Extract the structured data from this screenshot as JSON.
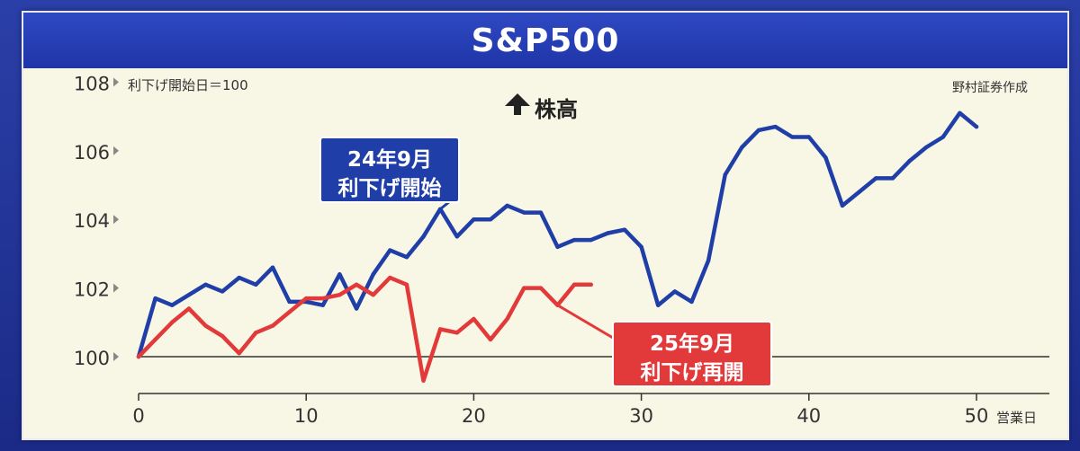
{
  "chart_data": {
    "type": "line",
    "title": "S&P500",
    "ylabel": "利下げ開始日＝100",
    "xlabel": "営業日",
    "source_note": "野村証券作成",
    "center_note": "株高",
    "ylim": [
      99,
      108
    ],
    "xlim": [
      0,
      54
    ],
    "x_ticks": [
      0,
      10,
      20,
      30,
      40,
      50
    ],
    "x_tick_labels": [
      "0",
      "10",
      "20",
      "30",
      "40",
      "50"
    ],
    "y_ticks": [
      100,
      102,
      104,
      106,
      108
    ],
    "y_tick_labels": [
      "100",
      "102",
      "104",
      "106",
      "108"
    ],
    "grid": false,
    "series": [
      {
        "color": "#1f3ea8",
        "label_lines": [
          "24年9月",
          "利下げ開始"
        ],
        "x": [
          0,
          1,
          2,
          3,
          4,
          5,
          6,
          7,
          8,
          9,
          10,
          11,
          12,
          13,
          14,
          15,
          16,
          17,
          18,
          19,
          20,
          21,
          22,
          23,
          24,
          25,
          26,
          27,
          28,
          29,
          30,
          31,
          32,
          33,
          34,
          35,
          36,
          37,
          38,
          39,
          40,
          41,
          42,
          43,
          44,
          45,
          46,
          47,
          48,
          49,
          50
        ],
        "values": [
          100.0,
          101.7,
          101.5,
          101.8,
          102.1,
          101.9,
          102.3,
          102.1,
          102.6,
          101.6,
          101.6,
          101.5,
          102.4,
          101.4,
          102.4,
          103.1,
          102.9,
          103.5,
          104.3,
          103.5,
          104.0,
          104.0,
          104.4,
          104.2,
          104.2,
          103.2,
          103.4,
          103.4,
          103.6,
          103.7,
          103.2,
          101.5,
          101.9,
          101.6,
          102.8,
          105.3,
          106.1,
          106.6,
          106.7,
          106.4,
          106.4,
          105.8,
          104.4,
          104.8,
          105.2,
          105.2,
          105.7,
          106.1,
          106.4,
          107.1,
          106.7
        ]
      },
      {
        "color": "#e23a3a",
        "label_lines": [
          "25年9月",
          "利下げ再開"
        ],
        "x": [
          0,
          1,
          2,
          3,
          4,
          5,
          6,
          7,
          8,
          9,
          10,
          11,
          12,
          13,
          14,
          15,
          16,
          17,
          18,
          19,
          20,
          21,
          22,
          23,
          24,
          25,
          26,
          27
        ],
        "values": [
          100.0,
          100.5,
          101.0,
          101.4,
          100.9,
          100.6,
          100.1,
          100.7,
          100.9,
          101.3,
          101.7,
          101.7,
          101.8,
          102.1,
          101.8,
          102.3,
          102.1,
          99.3,
          100.8,
          100.7,
          101.1,
          100.5,
          101.1,
          102.0,
          102.0,
          101.5,
          102.1,
          102.1
        ]
      }
    ]
  }
}
